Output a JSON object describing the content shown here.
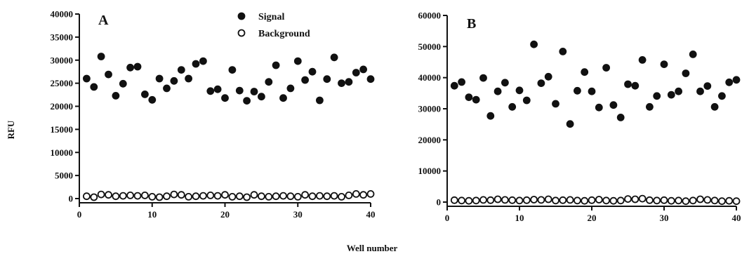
{
  "figure": {
    "ylabel": "RFU",
    "xlabel": "Well number"
  },
  "legend": {
    "items": [
      {
        "label": "Signal",
        "marker": "filled-circle"
      },
      {
        "label": "Background",
        "marker": "open-circle"
      }
    ]
  },
  "chart_data": [
    {
      "type": "scatter",
      "panel": "A",
      "xlim": [
        0,
        40
      ],
      "ylim": [
        0,
        40000
      ],
      "xticks": [
        0,
        10,
        20,
        30,
        40
      ],
      "yticks": [
        0,
        5000,
        10000,
        15000,
        20000,
        25000,
        30000,
        35000,
        40000
      ],
      "legend_position": "top-center",
      "series": [
        {
          "name": "Signal",
          "marker": "filled",
          "color": "#111111",
          "x": [
            1,
            2,
            3,
            4,
            5,
            6,
            7,
            8,
            9,
            10,
            11,
            12,
            13,
            14,
            15,
            16,
            17,
            18,
            19,
            20,
            21,
            22,
            23,
            24,
            25,
            26,
            27,
            28,
            29,
            30,
            31,
            32,
            33,
            34,
            35,
            36,
            37,
            38,
            39,
            40
          ],
          "y": [
            26000,
            24200,
            30800,
            26900,
            22300,
            24900,
            28400,
            28600,
            22600,
            21400,
            26000,
            23900,
            25500,
            27900,
            26000,
            29200,
            29800,
            23300,
            23700,
            21800,
            27900,
            23400,
            21200,
            23200,
            22100,
            25300,
            28900,
            21800,
            23900,
            29800,
            25700,
            27500,
            21300,
            25900,
            30600,
            25000,
            25300,
            27300,
            28000,
            25900
          ]
        },
        {
          "name": "Background",
          "marker": "open",
          "color": "#111111",
          "x": [
            1,
            2,
            3,
            4,
            5,
            6,
            7,
            8,
            9,
            10,
            11,
            12,
            13,
            14,
            15,
            16,
            17,
            18,
            19,
            20,
            21,
            22,
            23,
            24,
            25,
            26,
            27,
            28,
            29,
            30,
            31,
            32,
            33,
            34,
            35,
            36,
            37,
            38,
            39,
            40
          ],
          "y": [
            500,
            300,
            900,
            800,
            500,
            600,
            700,
            600,
            700,
            400,
            300,
            500,
            900,
            800,
            400,
            500,
            600,
            700,
            600,
            800,
            400,
            500,
            300,
            800,
            500,
            400,
            500,
            600,
            500,
            400,
            800,
            500,
            600,
            500,
            600,
            400,
            700,
            1000,
            800,
            1000
          ]
        }
      ]
    },
    {
      "type": "scatter",
      "panel": "B",
      "xlim": [
        0,
        40
      ],
      "ylim": [
        0,
        60000
      ],
      "xticks": [
        0,
        10,
        20,
        30,
        40
      ],
      "yticks": [
        0,
        10000,
        20000,
        30000,
        40000,
        50000,
        60000
      ],
      "series": [
        {
          "name": "Signal",
          "marker": "filled",
          "color": "#111111",
          "x": [
            1,
            2,
            3,
            4,
            5,
            6,
            7,
            8,
            9,
            10,
            11,
            12,
            13,
            14,
            15,
            16,
            17,
            18,
            19,
            20,
            21,
            22,
            23,
            24,
            25,
            26,
            27,
            28,
            29,
            30,
            31,
            32,
            33,
            34,
            35,
            36,
            37,
            38,
            39,
            40
          ],
          "y": [
            37400,
            38600,
            33700,
            32900,
            39900,
            27700,
            35600,
            38400,
            30600,
            35900,
            32700,
            50700,
            38200,
            40300,
            31600,
            48400,
            25100,
            35800,
            41800,
            35600,
            30400,
            43200,
            31200,
            27200,
            37900,
            37400,
            45700,
            30600,
            34100,
            44300,
            34500,
            35600,
            41400,
            47500,
            35600,
            37300,
            30600,
            34100,
            38500,
            39300
          ]
        },
        {
          "name": "Background",
          "marker": "open",
          "color": "#111111",
          "x": [
            1,
            2,
            3,
            4,
            5,
            6,
            7,
            8,
            9,
            10,
            11,
            12,
            13,
            14,
            15,
            16,
            17,
            18,
            19,
            20,
            21,
            22,
            23,
            24,
            25,
            26,
            27,
            28,
            29,
            30,
            31,
            32,
            33,
            34,
            35,
            36,
            37,
            38,
            39,
            40
          ],
          "y": [
            600,
            500,
            400,
            500,
            700,
            600,
            900,
            700,
            600,
            500,
            600,
            800,
            700,
            900,
            500,
            600,
            700,
            500,
            400,
            600,
            800,
            500,
            400,
            500,
            1000,
            900,
            1100,
            600,
            500,
            600,
            400,
            500,
            300,
            500,
            900,
            700,
            500,
            300,
            400,
            300
          ]
        }
      ]
    }
  ]
}
